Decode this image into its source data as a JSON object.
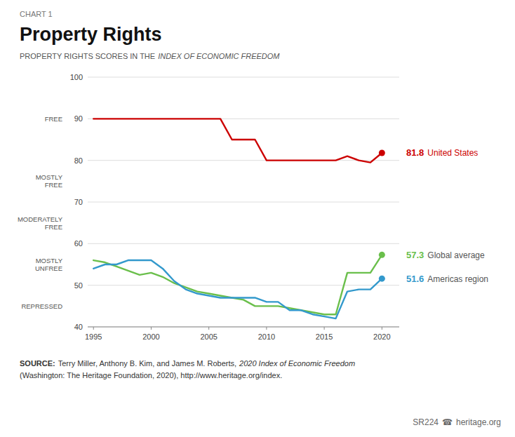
{
  "chart_data": {
    "type": "line",
    "label": "CHART 1",
    "title": "Property Rights",
    "subtitle": [
      "PROPERTY RIGHTS SCORES IN THE",
      "INDEX OF ECONOMIC FREEDOM"
    ],
    "x": [
      1995,
      1996,
      1997,
      1998,
      1999,
      2000,
      2001,
      2002,
      2003,
      2004,
      2005,
      2006,
      2007,
      2008,
      2009,
      2010,
      2011,
      2012,
      2013,
      2014,
      2015,
      2016,
      2017,
      2018,
      2019,
      2020
    ],
    "series": [
      {
        "name": "United States",
        "color": "#cc0000",
        "end_label": "81.8",
        "values": [
          90,
          90,
          90,
          90,
          90,
          90,
          90,
          90,
          90,
          90,
          90,
          90,
          85,
          85,
          85,
          80,
          80,
          80,
          80,
          80,
          80,
          80,
          81,
          80,
          79.5,
          81.8
        ]
      },
      {
        "name": "Global average",
        "color": "#6abf4b",
        "end_label": "57.3",
        "values": [
          56,
          55.5,
          54.5,
          53.5,
          52.5,
          53,
          52,
          50.5,
          49.5,
          48.5,
          48,
          47.5,
          47,
          46.5,
          45,
          45,
          45,
          44.5,
          44,
          43.5,
          43,
          43,
          53,
          53,
          53,
          57.3
        ]
      },
      {
        "name": "Americas region",
        "color": "#3399cc",
        "end_label": "51.6",
        "values": [
          54,
          55,
          55,
          56,
          56,
          56,
          54,
          51,
          49,
          48,
          47.5,
          47,
          47,
          47,
          47,
          46,
          46,
          44,
          44,
          43,
          42.5,
          42,
          48.5,
          49,
          49,
          51.6
        ]
      }
    ],
    "xlim": [
      1994.5,
      2021.5
    ],
    "xticks": [
      1995,
      2000,
      2005,
      2010,
      2015,
      2020
    ],
    "ylim": [
      40,
      100
    ],
    "yticks": [
      40,
      50,
      60,
      70,
      80,
      90,
      100
    ],
    "grid": true,
    "annotations": [
      {
        "text": "FREE",
        "y": 90
      },
      {
        "text": "MOSTLY\nFREE",
        "y": 75
      },
      {
        "text": "MODERATELY\nFREE",
        "y": 65
      },
      {
        "text": "MOSTLY\nUNFREE",
        "y": 55
      },
      {
        "text": "REPRESSED",
        "y": 45
      }
    ],
    "source": [
      "SOURCE:",
      "Terry Miller, Anthony B. Kim, and James M. Roberts,",
      "2020 Index of Economic Freedom",
      "(Washington: The Heritage Foundation, 2020), http://www.heritage.org/index."
    ],
    "footer": [
      "SR224",
      "☎",
      "heritage.org"
    ]
  }
}
